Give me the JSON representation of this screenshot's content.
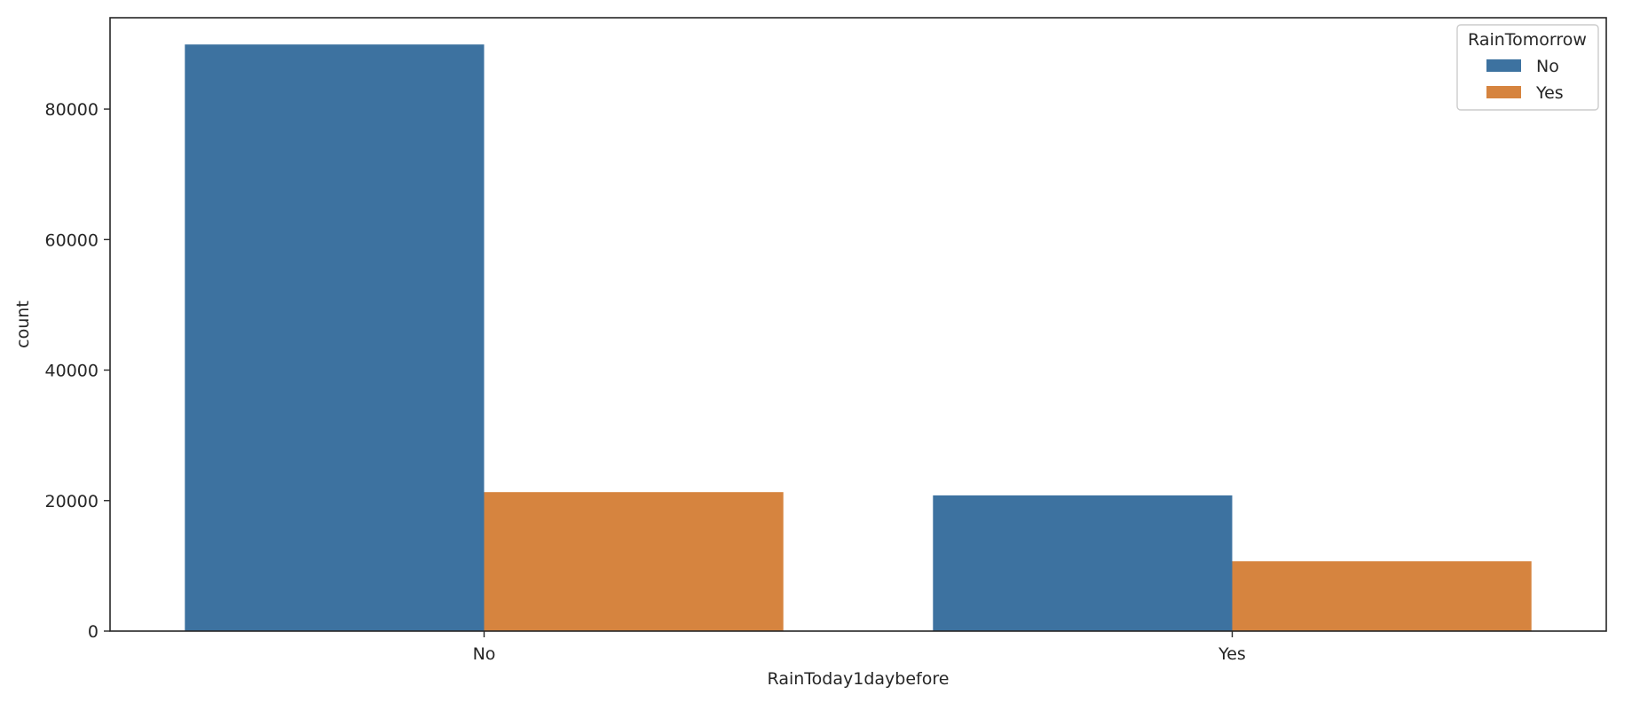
{
  "chart_data": {
    "type": "bar",
    "title": "",
    "xlabel": "RainToday1daybefore",
    "ylabel": "count",
    "categories": [
      "No",
      "Yes"
    ],
    "series": [
      {
        "name": "No",
        "color": "#3d72a0",
        "values": [
          89900,
          20800
        ]
      },
      {
        "name": "Yes",
        "color": "#d6843f",
        "values": [
          21300,
          10700
        ]
      }
    ],
    "ylim": [
      0,
      94000
    ],
    "yticks": [
      0,
      20000,
      40000,
      60000,
      80000
    ],
    "ytick_labels": [
      "0",
      "20000",
      "40000",
      "60000",
      "80000"
    ],
    "grid": false,
    "legend": {
      "title": "RainTomorrow",
      "placement": "top-right"
    }
  }
}
